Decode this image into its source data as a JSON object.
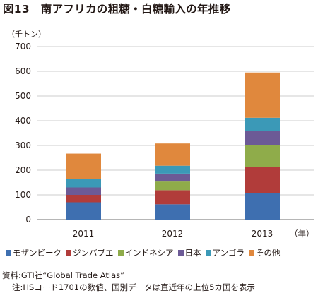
{
  "title": "図13　南アフリカの粗糖・白糖輸入の年推移",
  "unit_label": "（千トン）",
  "x_unit_label": "（年）",
  "source": "資料:GTI社“Global Trade Atlas”",
  "note": "注:HSコード1701の数値、国別データは直近年の上位5カ国を表示",
  "chart_data": {
    "type": "bar",
    "stacked": true,
    "categories": [
      "2011",
      "2012",
      "2013"
    ],
    "ylim": [
      0,
      700
    ],
    "yticks": [
      0,
      100,
      200,
      300,
      400,
      500,
      600,
      700
    ],
    "grid": true,
    "legend_position": "bottom",
    "series": [
      {
        "name": "モザンビーク",
        "color": "#3e6fb0",
        "values": [
          70,
          62,
          107
        ]
      },
      {
        "name": "ジンバブエ",
        "color": "#b13c3a",
        "values": [
          30,
          57,
          105
        ]
      },
      {
        "name": "インドネシア",
        "color": "#8fac4a",
        "values": [
          0,
          35,
          88
        ]
      },
      {
        "name": "日本",
        "color": "#6c5a96",
        "values": [
          30,
          32,
          60
        ]
      },
      {
        "name": "アンゴラ",
        "color": "#3b99b7",
        "values": [
          33,
          32,
          52
        ]
      },
      {
        "name": "その他",
        "color": "#e0883d",
        "values": [
          104,
          90,
          183
        ]
      }
    ]
  }
}
